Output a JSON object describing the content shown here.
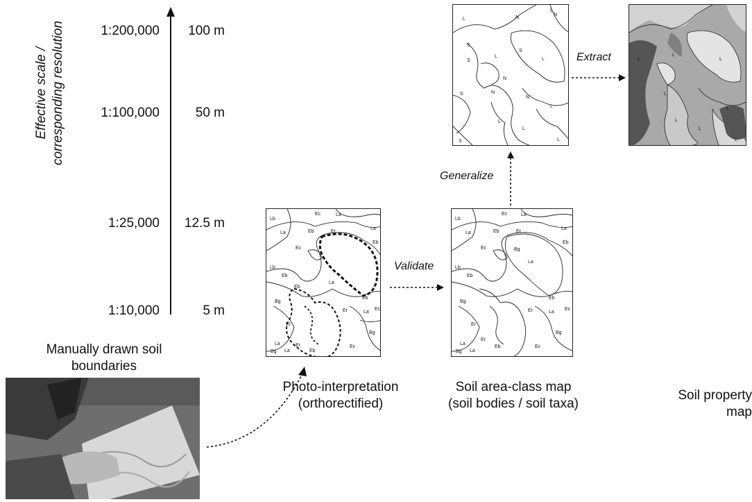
{
  "axis": {
    "title_line1": "Effective scale /",
    "title_line2": "corresponding resolution",
    "levels": [
      {
        "scale": "1:200,000",
        "resolution": "100 m"
      },
      {
        "scale": "1:100,000",
        "resolution": "50 m"
      },
      {
        "scale": "1:25,000",
        "resolution": "12.5 m"
      },
      {
        "scale": "1:10,000",
        "resolution": "5 m"
      }
    ]
  },
  "manual": {
    "caption_line1": "Manually drawn soil",
    "caption_line2": "boundaries"
  },
  "photo": {
    "caption_line1": "Photo-interpretation",
    "caption_line2": "(orthorectified)"
  },
  "areaclass": {
    "caption_line1": "Soil area-class map",
    "caption_line2": "(soil bodies / soil taxa)"
  },
  "property": {
    "caption": "Soil property map"
  },
  "steps": {
    "validate": "Validate",
    "generalize": "Generalize",
    "extract": "Extract"
  },
  "map_labels": {
    "detailed": [
      "Lb",
      "La",
      "Eb",
      "Ec",
      "Er",
      "La",
      "La",
      "Eb",
      "Ec",
      "Bg",
      "Eb",
      "La",
      "Er",
      "Lb",
      "Eb",
      "Er",
      "La",
      "Ec",
      "Bg",
      "La",
      "Eb",
      "Er",
      "La",
      "Bg",
      "Ec",
      "Eb"
    ],
    "generalized": [
      "L",
      "N",
      "S",
      "L",
      "N",
      "S",
      "L",
      "N",
      "L",
      "S",
      "N",
      "L",
      "L",
      "S",
      "S",
      "L",
      "N",
      "L"
    ]
  },
  "colors": {
    "line": "#222222",
    "dark": "#555555",
    "mid": "#9a9a9a",
    "light": "#d2d2d2",
    "lighter": "#e4e4e4"
  }
}
